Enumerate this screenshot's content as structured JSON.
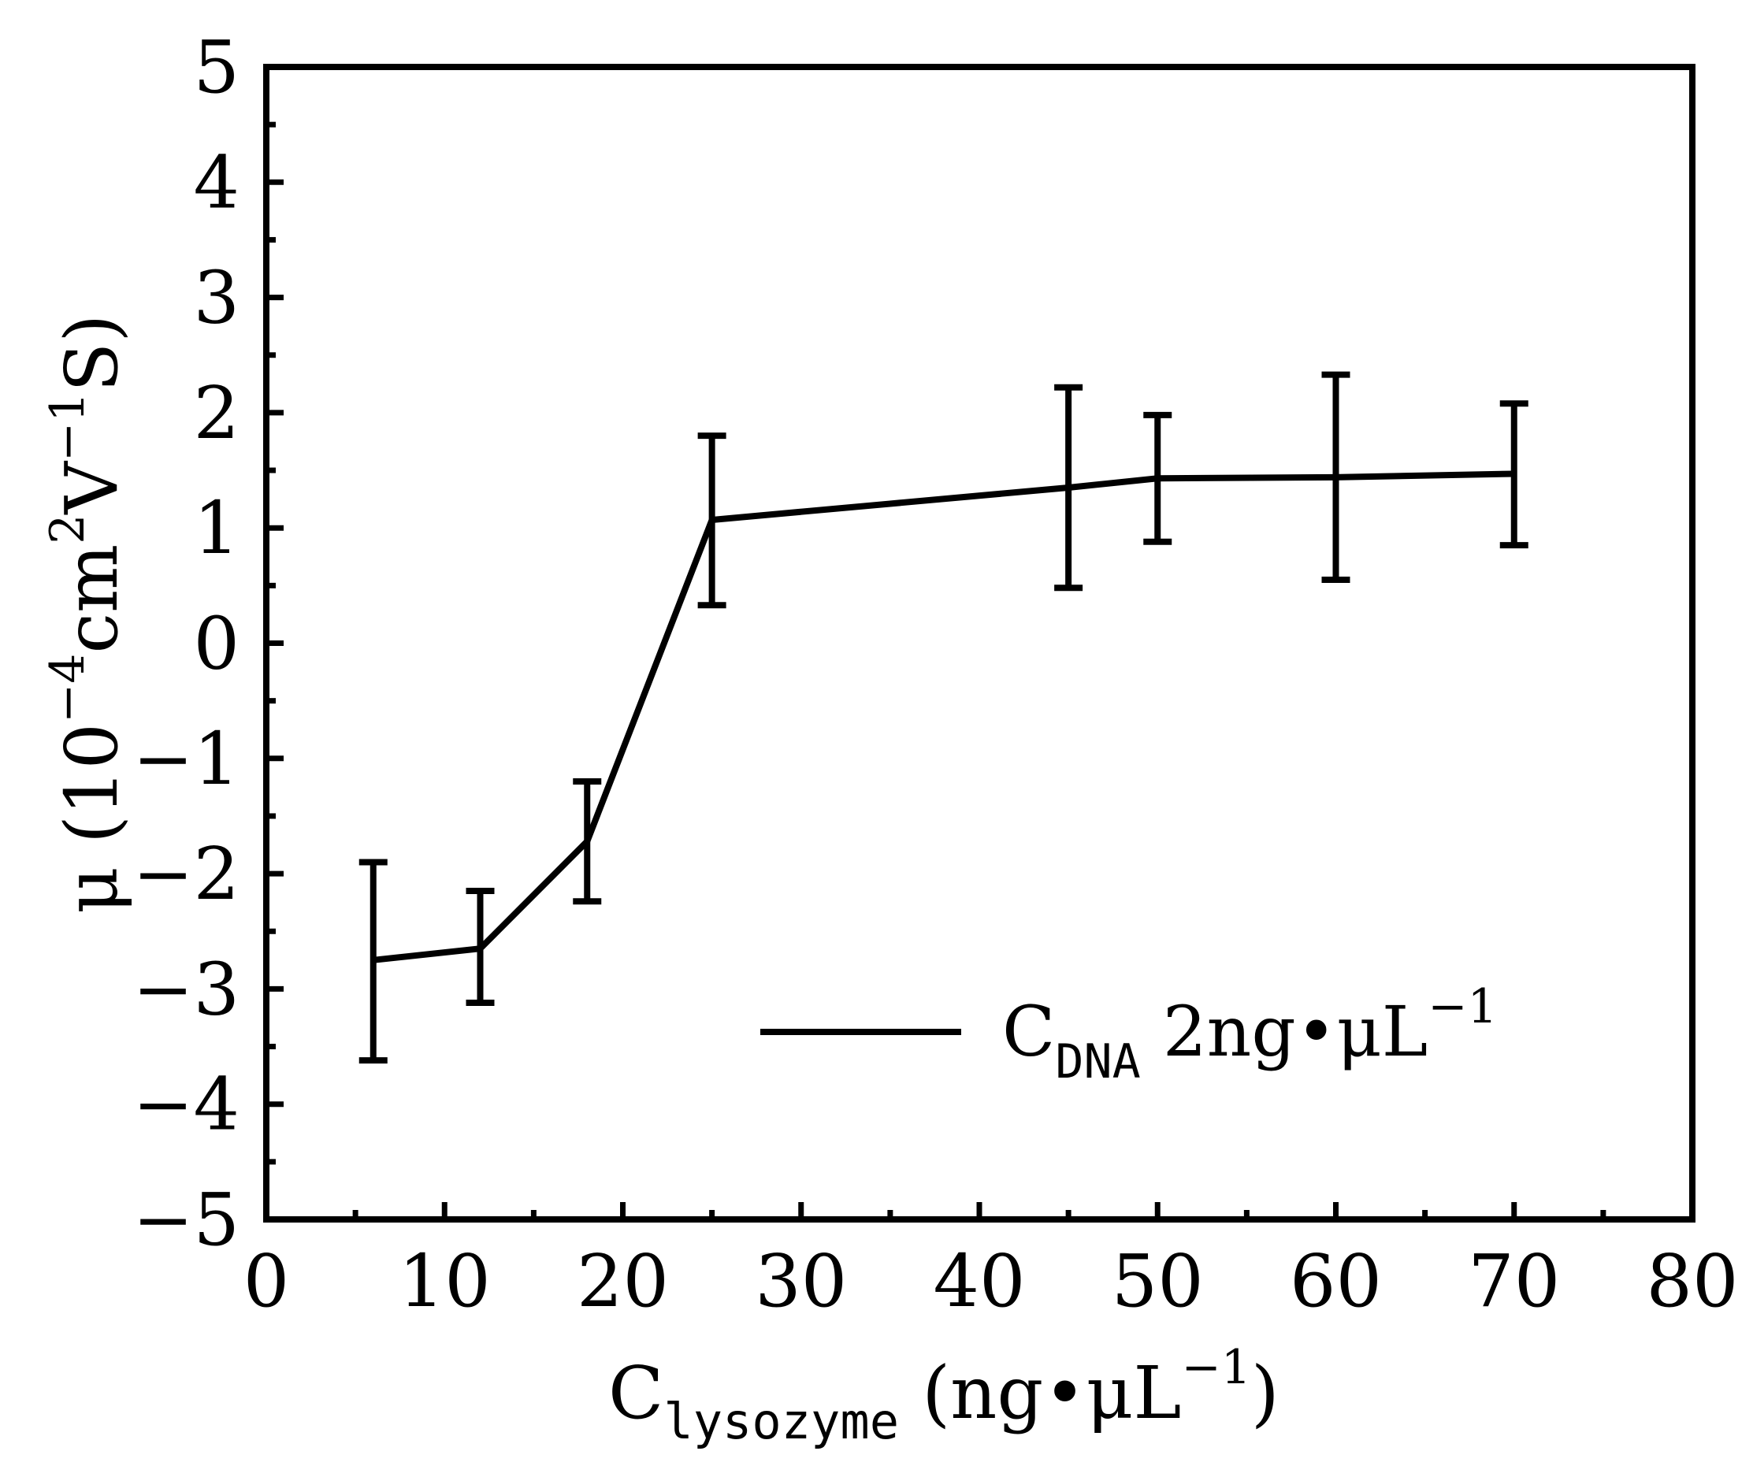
{
  "chart_data": {
    "type": "line",
    "xlim": [
      0,
      80
    ],
    "ylim": [
      -5,
      5
    ],
    "x_ticks": [
      0,
      10,
      20,
      30,
      40,
      50,
      60,
      70,
      80
    ],
    "y_ticks": [
      5,
      4,
      3,
      2,
      1,
      0,
      -1,
      -2,
      -3,
      -4,
      -5
    ],
    "x_tick_labels": [
      "0",
      "10",
      "20",
      "30",
      "40",
      "50",
      "60",
      "70",
      "80"
    ],
    "y_tick_labels": [
      "5",
      "4",
      "3",
      "2",
      "1",
      "0",
      "−1",
      "−2",
      "−3",
      "−4",
      "−5"
    ],
    "xlabel": {
      "main": "C",
      "sub": "lysozyme",
      "rest": " (ng•μL",
      "sup": "−1",
      "end": ")"
    },
    "ylabel": {
      "main": "μ (10",
      "sup1": "−4",
      "mid1": "cm",
      "sup2": "2",
      "mid2": "V",
      "sup3": "−1",
      "end": "S)"
    },
    "legend": {
      "main": "C",
      "sub": "DNA",
      "rest": " 2ng•μL",
      "sup": "−1",
      "placement": "bottom-right"
    },
    "grid": false,
    "series": [
      {
        "x": [
          6,
          12,
          18,
          25,
          45,
          50,
          60,
          70
        ],
        "y": [
          -2.75,
          -2.65,
          -1.72,
          1.07,
          1.35,
          1.43,
          1.44,
          1.47
        ],
        "err_low": [
          -3.62,
          -3.12,
          -2.24,
          0.33,
          0.48,
          0.88,
          0.55,
          0.85
        ],
        "err_high": [
          -1.9,
          -2.15,
          -1.2,
          1.8,
          2.22,
          1.98,
          2.33,
          2.08
        ]
      }
    ]
  }
}
